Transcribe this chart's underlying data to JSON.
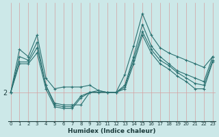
{
  "xlabel": "Humidex (Indice chaleur)",
  "bg_color": "#cce8e8",
  "line_color": "#2a7070",
  "grid_color": "#aad0d0",
  "x_ticks": [
    0,
    1,
    2,
    3,
    4,
    5,
    6,
    7,
    8,
    9,
    10,
    11,
    12,
    13,
    14,
    15,
    16,
    17,
    18,
    19,
    20,
    21,
    22,
    23
  ],
  "y_tick_val": 2,
  "ylim": [
    1.2,
    4.5
  ],
  "xlim": [
    -0.3,
    23.3
  ],
  "series": [
    [
      2.0,
      3.2,
      3.0,
      3.6,
      2.4,
      2.1,
      2.15,
      2.15,
      2.15,
      2.2,
      2.05,
      2.0,
      2.0,
      2.5,
      3.3,
      4.2,
      3.6,
      3.25,
      3.1,
      3.0,
      2.9,
      2.8,
      2.7,
      3.0
    ],
    [
      2.0,
      3.0,
      2.9,
      3.4,
      2.2,
      1.7,
      1.65,
      1.65,
      1.65,
      2.0,
      2.05,
      2.0,
      2.0,
      2.2,
      3.0,
      3.9,
      3.3,
      3.0,
      2.8,
      2.6,
      2.5,
      2.4,
      2.3,
      3.0
    ],
    [
      2.0,
      2.85,
      2.85,
      3.25,
      2.2,
      1.65,
      1.6,
      1.6,
      1.9,
      2.0,
      2.0,
      2.0,
      2.0,
      2.15,
      2.9,
      3.7,
      3.2,
      2.9,
      2.75,
      2.55,
      2.4,
      2.25,
      2.2,
      2.9
    ],
    [
      2.0,
      2.8,
      2.8,
      3.1,
      2.1,
      1.6,
      1.55,
      1.55,
      1.85,
      2.0,
      2.0,
      2.0,
      2.0,
      2.1,
      2.8,
      3.6,
      3.1,
      2.8,
      2.65,
      2.45,
      2.3,
      2.1,
      2.1,
      2.85
    ]
  ]
}
